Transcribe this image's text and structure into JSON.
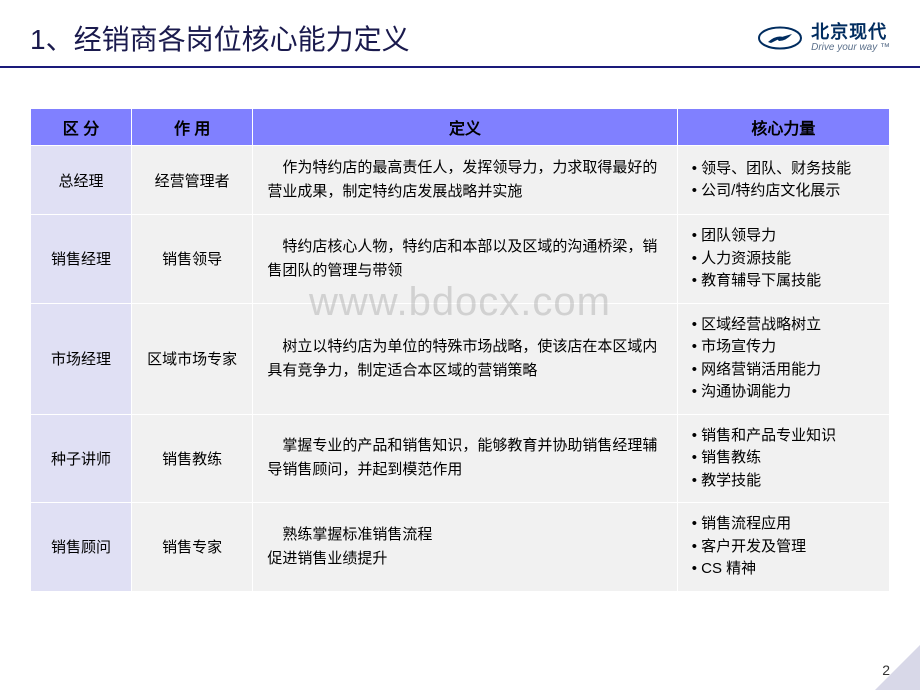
{
  "header": {
    "title": "1、经销商各岗位核心能力定义",
    "logo_cn": "北京现代",
    "logo_en": "Drive your way ™"
  },
  "colors": {
    "header_bg": "#8080ff",
    "role_bg": "#e0e0f4",
    "cell_bg": "#f1f1f1",
    "divider": "#1a1a7a",
    "title_color": "#1a1a4d"
  },
  "watermark": "www.bdocx.com",
  "page_number": "2",
  "table": {
    "headers": [
      "区  分",
      "作  用",
      "定义",
      "核心力量"
    ],
    "rows": [
      {
        "role": "总经理",
        "func": "经营管理者",
        "def": "作为特约店的最高责任人，发挥领导力，力求取得最好的营业成果，制定特约店发展战略并实施",
        "core": [
          "领导、团队、财务技能",
          "公司/特约店文化展示"
        ]
      },
      {
        "role": "销售经理",
        "func": "销售领导",
        "def": "特约店核心人物，特约店和本部以及区域的沟通桥梁，销售团队的管理与带领",
        "core": [
          "团队领导力",
          "人力资源技能",
          "教育辅导下属技能"
        ]
      },
      {
        "role": "市场经理",
        "func": "区域市场专家",
        "def": "树立以特约店为单位的特殊市场战略，使该店在本区域内具有竞争力，制定适合本区域的营销策略",
        "core": [
          "区域经营战略树立",
          "市场宣传力",
          "网络营销活用能力",
          "沟通协调能力"
        ]
      },
      {
        "role": "种子讲师",
        "func": "销售教练",
        "def": "掌握专业的产品和销售知识，能够教育并协助销售经理辅导销售顾问，并起到模范作用",
        "core": [
          "销售和产品专业知识",
          "销售教练",
          "教学技能"
        ]
      },
      {
        "role": "销售顾问",
        "func": "销售专家",
        "def": "熟练掌握标准销售流程\n促进销售业绩提升",
        "core": [
          "销售流程应用",
          "客户开发及管理",
          "CS 精神"
        ]
      }
    ]
  }
}
